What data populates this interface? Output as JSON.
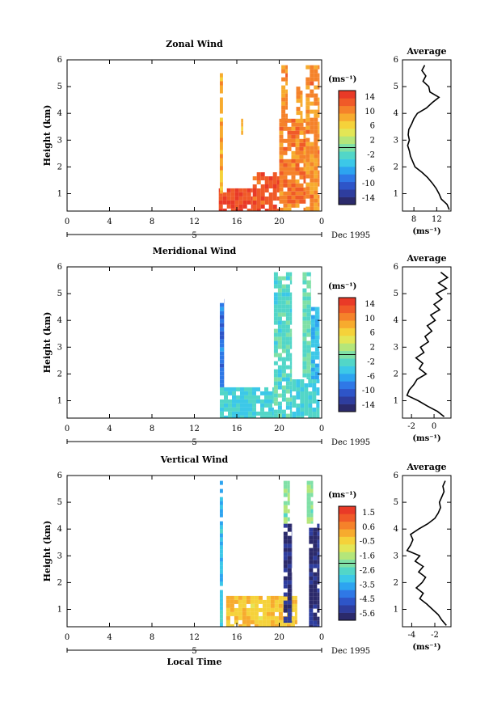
{
  "x_axis": {
    "ticks": [
      "0",
      "4",
      "8",
      "12",
      "16",
      "20",
      "0"
    ],
    "day_label": "5",
    "month_year": "Dec 1995",
    "xlabel": "Local Time"
  },
  "panel_ylabel": "Height (km)",
  "height_ticks": [
    "1",
    "2",
    "3",
    "4",
    "5",
    "6"
  ],
  "unit_label": "(ms⁻¹)",
  "avg_title": "Average",
  "colors": {
    "scale": [
      "#2b2a6b",
      "#2e3d9e",
      "#2e55c8",
      "#2f78e6",
      "#2da4f0",
      "#3cc8e8",
      "#52d6c8",
      "#7fe0a6",
      "#b4e67a",
      "#e3e656",
      "#f5d23a",
      "#f7ab2e",
      "#f5822a",
      "#f05a28",
      "#e93a27"
    ]
  },
  "chart_data": [
    {
      "type": "heatmap",
      "title": "Zonal Wind",
      "ylabel": "Height (km)",
      "xlabel": "",
      "xlim": [
        0,
        24
      ],
      "ylim": [
        0.35,
        6
      ],
      "colorbar": {
        "unit": "(ms⁻¹)",
        "ticks": [
          "14",
          "10",
          "6",
          "2",
          "-2",
          "-6",
          "-10",
          "-14"
        ],
        "range": [
          -16,
          16
        ]
      },
      "regions": [
        {
          "x": [
            14.3,
            17.5
          ],
          "y": [
            0.35,
            1.2
          ],
          "value": 14
        },
        {
          "x": [
            17.5,
            20.0
          ],
          "y": [
            0.35,
            1.8
          ],
          "value": 13
        },
        {
          "x": [
            20.0,
            22.5
          ],
          "y": [
            0.35,
            3.8
          ],
          "value": 11
        },
        {
          "x": [
            22.5,
            23.8
          ],
          "y": [
            0.35,
            5.8
          ],
          "value": 10
        },
        {
          "x": [
            14.4,
            14.7
          ],
          "y": [
            1.0,
            5.5
          ],
          "value": 8
        },
        {
          "x": [
            16.4,
            16.6
          ],
          "y": [
            3.2,
            3.8
          ],
          "value": 8
        },
        {
          "x": [
            20.2,
            20.8
          ],
          "y": [
            3.6,
            5.8
          ],
          "value": 10
        },
        {
          "x": [
            21.6,
            22.2
          ],
          "y": [
            3.5,
            5.0
          ],
          "value": 9
        }
      ],
      "profile": {
        "title": "Average",
        "xlabel": "(ms⁻¹)",
        "xticks": [
          "8",
          "12"
        ],
        "xlim": [
          6,
          14.5
        ],
        "heights": [
          0.4,
          0.6,
          0.8,
          1.0,
          1.2,
          1.4,
          1.6,
          1.8,
          2.0,
          2.2,
          2.4,
          2.6,
          2.8,
          3.0,
          3.2,
          3.4,
          3.6,
          3.8,
          4.0,
          4.2,
          4.4,
          4.6,
          4.8,
          5.0,
          5.2,
          5.4,
          5.6,
          5.8
        ],
        "values": [
          14.2,
          13.8,
          12.8,
          12.4,
          11.9,
          11.2,
          10.4,
          9.4,
          8.2,
          7.8,
          7.4,
          7.2,
          6.9,
          7.2,
          7.0,
          7.1,
          7.6,
          8.0,
          8.6,
          10.2,
          11.2,
          12.4,
          10.8,
          10.6,
          9.6,
          10.1,
          9.4,
          9.9
        ]
      }
    },
    {
      "type": "heatmap",
      "title": "Meridional Wind",
      "ylabel": "Height (km)",
      "xlabel": "",
      "xlim": [
        0,
        24
      ],
      "ylim": [
        0.35,
        6
      ],
      "colorbar": {
        "unit": "(ms⁻¹)",
        "ticks": [
          "14",
          "10",
          "6",
          "2",
          "-2",
          "-6",
          "-10",
          "-14"
        ],
        "range": [
          -16,
          16
        ]
      },
      "regions": [
        {
          "x": [
            14.4,
            19.5
          ],
          "y": [
            0.35,
            1.5
          ],
          "value": -3
        },
        {
          "x": [
            19.5,
            21.2
          ],
          "y": [
            0.35,
            5.8
          ],
          "value": -2
        },
        {
          "x": [
            21.2,
            23.8
          ],
          "y": [
            0.35,
            1.8
          ],
          "value": -3
        },
        {
          "x": [
            22.2,
            23.0
          ],
          "y": [
            1.8,
            5.8
          ],
          "value": -1
        },
        {
          "x": [
            23.0,
            23.8
          ],
          "y": [
            1.8,
            4.5
          ],
          "value": -5
        },
        {
          "x": [
            14.4,
            14.8
          ],
          "y": [
            1.5,
            4.8
          ],
          "value": -9
        }
      ],
      "profile": {
        "title": "Average",
        "xlabel": "(ms⁻¹)",
        "xticks": [
          "-2",
          "0"
        ],
        "xlim": [
          -2.8,
          1.5
        ],
        "heights": [
          0.4,
          0.6,
          0.8,
          1.0,
          1.2,
          1.4,
          1.6,
          1.8,
          2.0,
          2.2,
          2.4,
          2.6,
          2.8,
          3.0,
          3.2,
          3.4,
          3.6,
          3.8,
          4.0,
          4.2,
          4.4,
          4.6,
          4.8,
          5.0,
          5.2,
          5.4,
          5.6,
          5.8
        ],
        "values": [
          0.9,
          0.3,
          -0.6,
          -1.4,
          -2.4,
          -2.2,
          -1.8,
          -1.5,
          -0.7,
          -1.3,
          -1.0,
          -1.6,
          -0.9,
          -1.2,
          -0.5,
          -0.8,
          -0.2,
          -0.6,
          0.1,
          -0.3,
          0.5,
          0.0,
          0.7,
          0.2,
          1.1,
          0.4,
          1.2,
          0.6
        ]
      }
    },
    {
      "type": "heatmap",
      "title": "Vertical Wind",
      "ylabel": "Height (km)",
      "xlabel": "Local Time",
      "xlim": [
        0,
        24
      ],
      "ylim": [
        0.35,
        6
      ],
      "colorbar": {
        "unit": "(ms⁻¹)",
        "ticks": [
          "1.5",
          "0.6",
          "-0.5",
          "-1.6",
          "-2.6",
          "-3.5",
          "-4.5",
          "-5.6"
        ],
        "range": [
          -6.0,
          2.0
        ]
      },
      "regions": [
        {
          "x": [
            15.0,
            21.7
          ],
          "y": [
            0.35,
            1.5
          ],
          "value": -0.2
        },
        {
          "x": [
            14.4,
            14.7
          ],
          "y": [
            0.35,
            5.8
          ],
          "value": -3.2
        },
        {
          "x": [
            20.4,
            21.2
          ],
          "y": [
            0.5,
            4.2
          ],
          "value": -5.5
        },
        {
          "x": [
            22.8,
            23.8
          ],
          "y": [
            0.35,
            4.2
          ],
          "value": -5.6
        },
        {
          "x": [
            20.4,
            21.0
          ],
          "y": [
            4.2,
            5.8
          ],
          "value": -1.8
        },
        {
          "x": [
            22.6,
            23.2
          ],
          "y": [
            4.2,
            5.8
          ],
          "value": -1.8
        }
      ],
      "profile": {
        "title": "Average",
        "xlabel": "(ms⁻¹)",
        "xticks": [
          "-4",
          "-2"
        ],
        "xlim": [
          -4.8,
          -0.6
        ],
        "heights": [
          0.4,
          0.6,
          0.8,
          1.0,
          1.2,
          1.4,
          1.6,
          1.8,
          2.0,
          2.2,
          2.4,
          2.6,
          2.8,
          3.0,
          3.2,
          3.4,
          3.6,
          3.8,
          4.0,
          4.2,
          4.4,
          4.6,
          4.8,
          5.0,
          5.2,
          5.4,
          5.6,
          5.8
        ],
        "values": [
          -1.0,
          -1.4,
          -1.7,
          -2.2,
          -2.7,
          -3.3,
          -3.0,
          -3.6,
          -3.1,
          -2.8,
          -3.4,
          -3.0,
          -3.7,
          -3.3,
          -4.4,
          -4.1,
          -3.9,
          -4.1,
          -3.4,
          -2.6,
          -2.0,
          -1.7,
          -1.5,
          -1.6,
          -1.4,
          -1.2,
          -1.3,
          -1.1
        ]
      }
    }
  ]
}
